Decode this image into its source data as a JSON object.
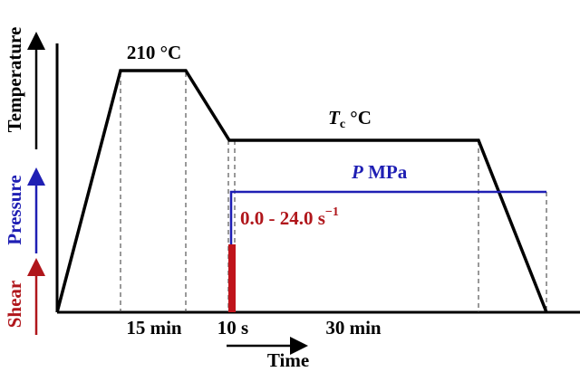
{
  "axes": {
    "temperature": "Temperature",
    "pressure": "Pressure",
    "shear": "Shear",
    "time": "Time"
  },
  "labels": {
    "melt_temp": "210 °C",
    "crystallization_temp": {
      "symbol": "T",
      "subscript": "c",
      "unit": " °C"
    },
    "pressure": {
      "symbol": "P",
      "unit": " MPa"
    },
    "shear_rate": {
      "text": "0.0 - 24.0 s",
      "superscript": "−1"
    },
    "hold_time": "15 min",
    "shear_time": "10 s",
    "crystallization_time": "30 min"
  }
}
